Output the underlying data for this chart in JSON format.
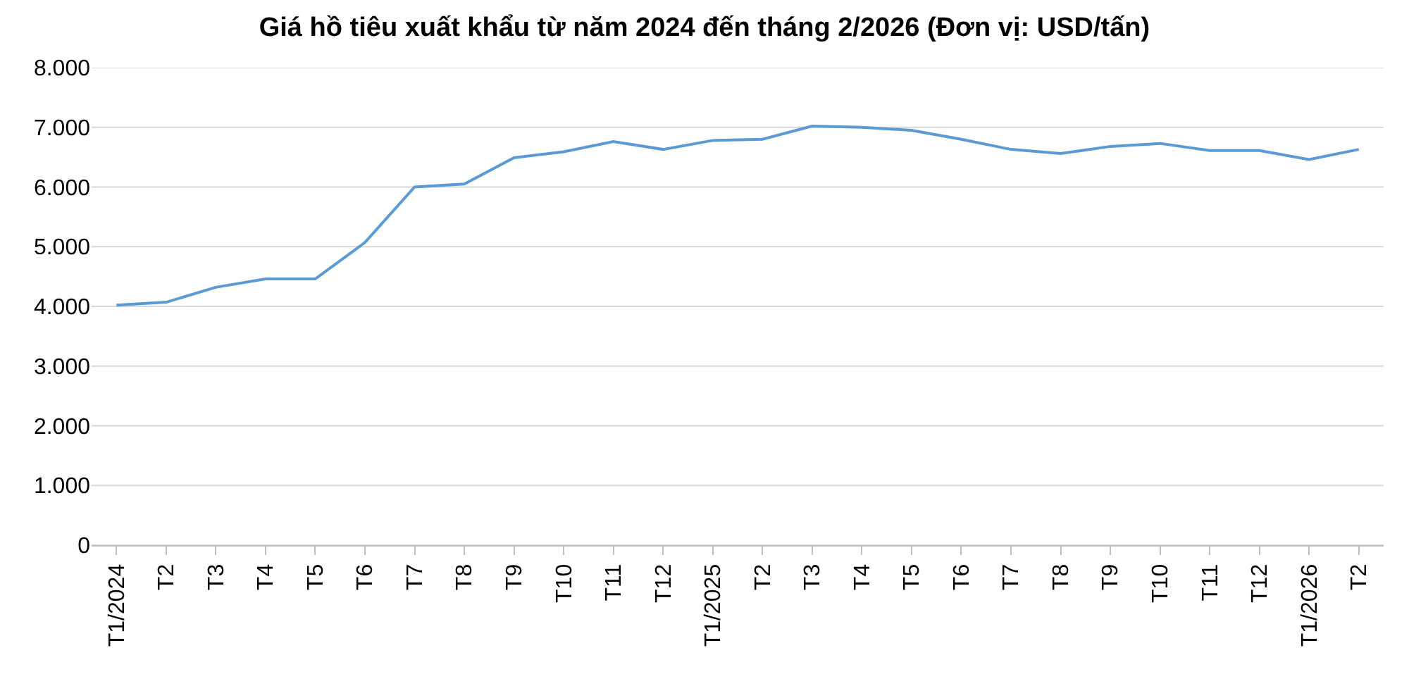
{
  "chart_data": {
    "type": "line",
    "title": "Giá hồ tiêu xuất khẩu từ năm 2024 đến tháng 2/2026 (Đơn vị: USD/tấn)",
    "categories": [
      "T1/2024",
      "T2",
      "T3",
      "T4",
      "T5",
      "T6",
      "T7",
      "T8",
      "T9",
      "T10",
      "T11",
      "T12",
      "T1/2025",
      "T2",
      "T3",
      "T4",
      "T5",
      "T6",
      "T7",
      "T8",
      "T9",
      "T10",
      "T11",
      "T12",
      "T1/2026",
      "T2"
    ],
    "series": [
      {
        "color": "#5b9bd5",
        "values": [
          4020,
          4070,
          4320,
          4460,
          4460,
          5070,
          6000,
          6050,
          6490,
          6590,
          6760,
          6630,
          6780,
          6800,
          7020,
          7000,
          6950,
          6800,
          6630,
          6560,
          6680,
          6730,
          6610,
          6610,
          6460,
          6630
        ]
      }
    ],
    "ylim": [
      0,
      8000
    ],
    "yticks": [
      {
        "value": 0,
        "label": "0"
      },
      {
        "value": 1000,
        "label": "1.000"
      },
      {
        "value": 2000,
        "label": "2.000"
      },
      {
        "value": 3000,
        "label": "3.000"
      },
      {
        "value": 4000,
        "label": "4.000"
      },
      {
        "value": 5000,
        "label": "5.000"
      },
      {
        "value": 6000,
        "label": "6.000"
      },
      {
        "value": 7000,
        "label": "7.000"
      },
      {
        "value": 8000,
        "label": "8.000"
      }
    ],
    "grid": "y",
    "marker": "none",
    "line_style": "solid"
  }
}
